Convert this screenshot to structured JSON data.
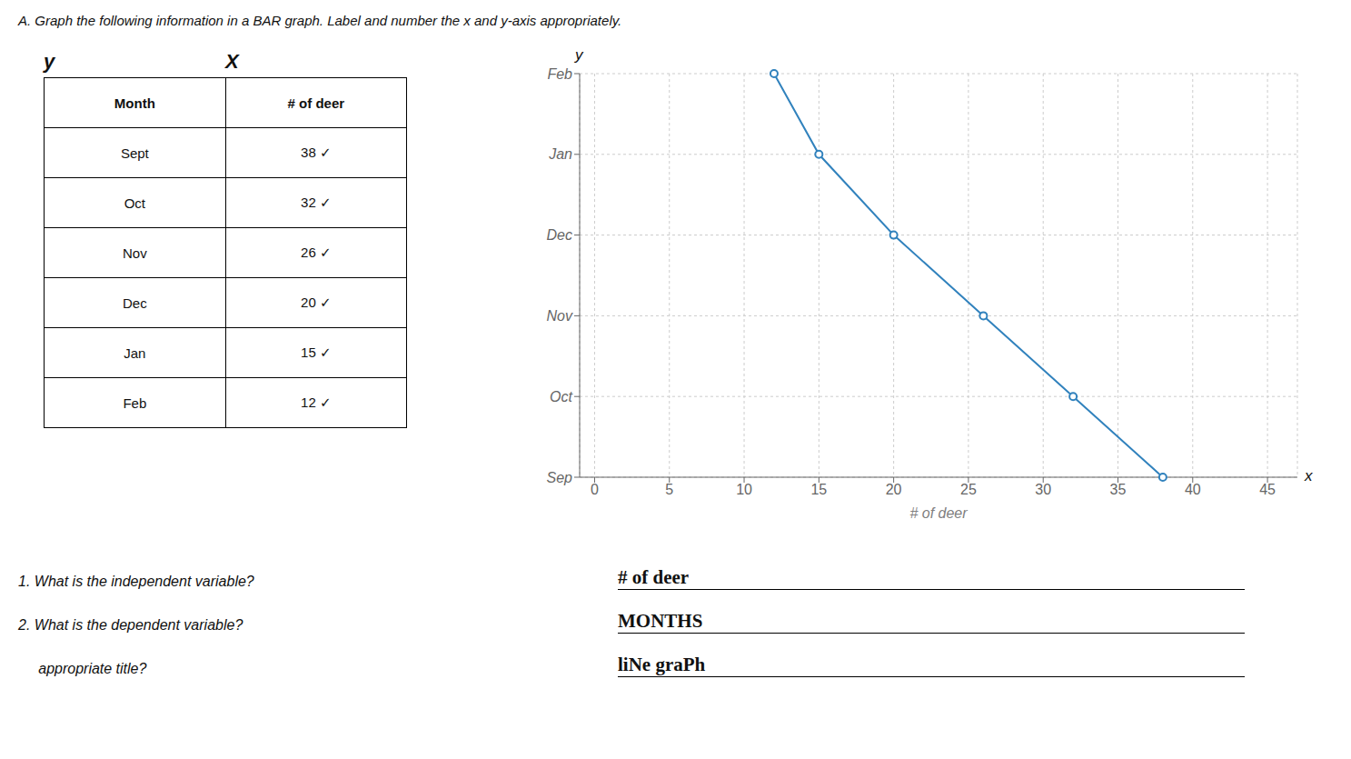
{
  "chart_data": {
    "type": "line",
    "title": "A.  Graph the following information in a BAR graph. Label and number the x and y-axis appropriately.",
    "orientation": "horizontal",
    "categories": [
      "Sep",
      "Oct",
      "Nov",
      "Dec",
      "Jan",
      "Feb"
    ],
    "values": [
      38,
      32,
      26,
      20,
      15,
      12
    ],
    "xlabel": "# of deer",
    "xlim": [
      -1,
      47
    ],
    "xticks": [
      0,
      5,
      10,
      15,
      20,
      25,
      30,
      35,
      40,
      45
    ],
    "grid": true,
    "marker": "circle",
    "annotations": [
      "x",
      "y"
    ],
    "table": {
      "columns": [
        "Month",
        "# of deer"
      ],
      "column_marks": [
        "y",
        "X"
      ],
      "rows": [
        [
          "Sept",
          "38 ✓"
        ],
        [
          "Oct",
          "32 ✓"
        ],
        [
          "Nov",
          "26 ✓"
        ],
        [
          "Dec",
          "20 ✓"
        ],
        [
          "Jan",
          "15 ✓"
        ],
        [
          "Feb",
          "12 ✓"
        ]
      ]
    },
    "questions": [
      {
        "question": "1. What is the independent variable?",
        "answer": "# of deer"
      },
      {
        "question": "2. What is the dependent variable?",
        "answer": "MONTHS"
      },
      {
        "question": "     appropriate title?",
        "answer": "liNe graPh"
      }
    ]
  }
}
